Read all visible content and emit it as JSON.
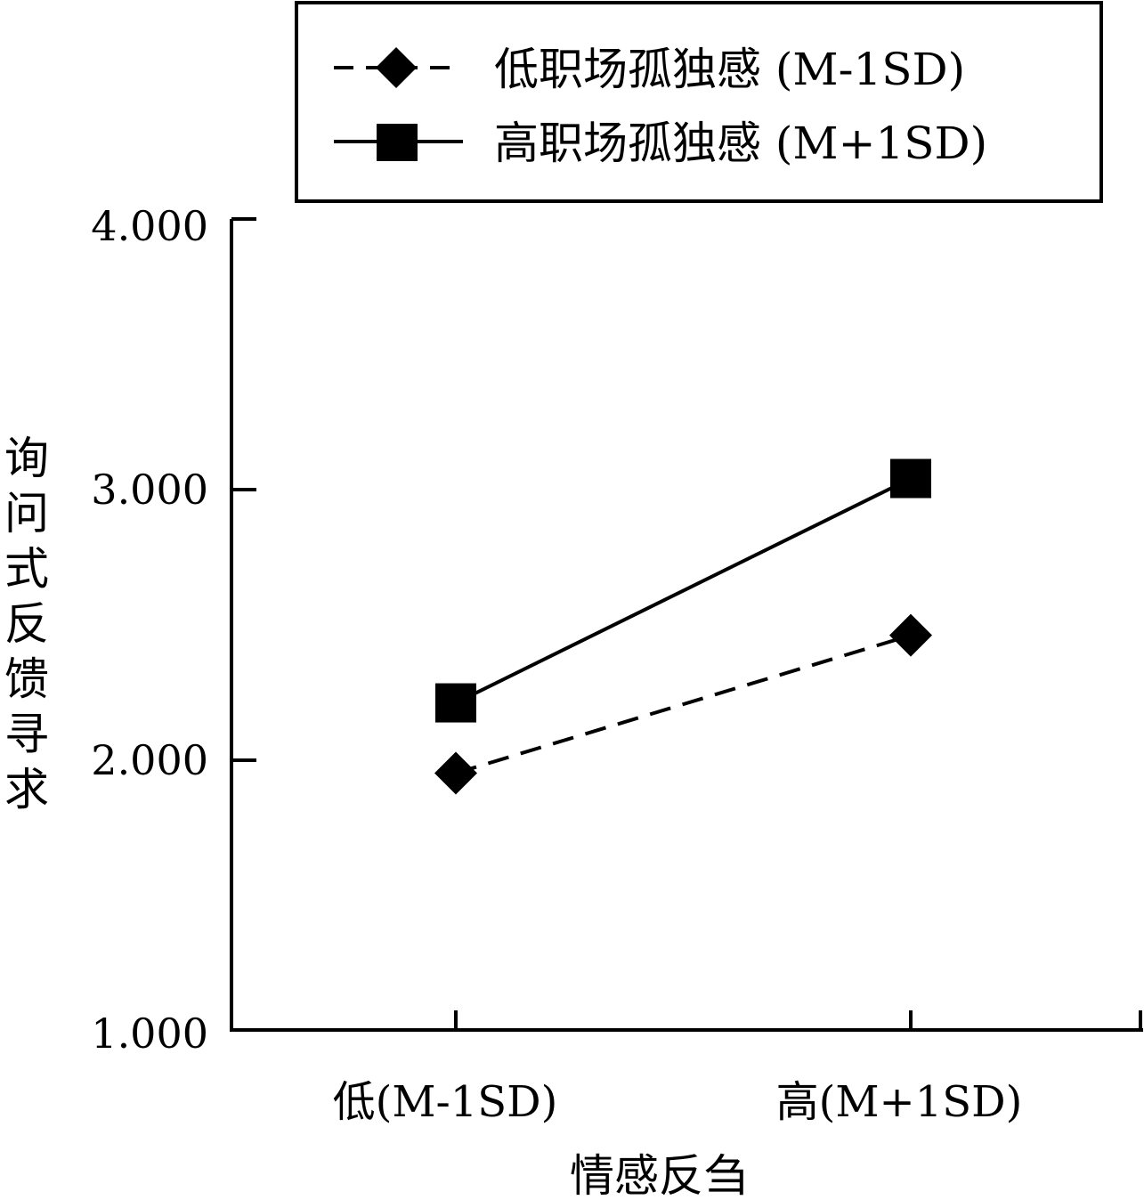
{
  "chart_data": {
    "type": "line",
    "title": "",
    "xlabel": "情感反刍",
    "ylabel": "询问式反馈寻求",
    "categories": [
      "低(M-1SD)",
      "高(M+1SD)"
    ],
    "ylim": [
      1.0,
      4.0
    ],
    "yticks": [
      "1.000",
      "2.000",
      "3.000",
      "4.000"
    ],
    "grid": false,
    "legend_position": "top",
    "series": [
      {
        "name": "低职场孤独感 (M-1SD)",
        "values": [
          1.95,
          2.46
        ],
        "marker": "diamond",
        "line_style": "dashed",
        "color": "#000000"
      },
      {
        "name": "高职场孤独感 (M+1SD)",
        "values": [
          2.21,
          3.04
        ],
        "marker": "square",
        "line_style": "solid",
        "color": "#000000"
      }
    ]
  }
}
